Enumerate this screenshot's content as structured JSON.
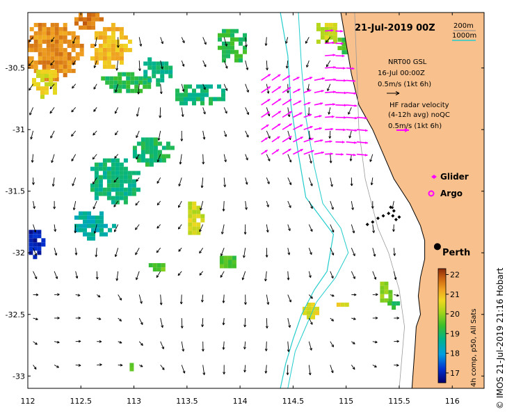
{
  "title": "21-Jul-2019 00Z",
  "depth_legend": {
    "d1": "200m",
    "d2": "1000m",
    "color_200": "#888888",
    "color_1000": "#22cccc"
  },
  "gsl": {
    "line1": "NRT00 GSL",
    "line2": "16-Jul 00:00Z",
    "line3": "0.5m/s (1kt 6h)"
  },
  "radar": {
    "line1": "HF radar velocity",
    "line2": "(4-12h avg) noQC",
    "line3": "0.5m/s (1kt 6h)",
    "color": "#ff00ff"
  },
  "glider_label": "Glider",
  "argo_label": "Argo",
  "city_label": "Perth",
  "colorbar": {
    "ticks": [
      "22",
      "21",
      "20",
      "19",
      "18",
      "17"
    ],
    "label": "4h comp, p50, All Sats"
  },
  "credit": "© IMOS 21-Jul-2019 21:16 Hobart",
  "colors": {
    "land": "#f8c08c",
    "ocean": "#ffffff",
    "isobath_1000": "#22cccc"
  },
  "chart_data": {
    "type": "map",
    "x_ticks": [
      "112",
      "112.5",
      "113",
      "113.5",
      "114",
      "114.5",
      "115",
      "115.5",
      "116"
    ],
    "y_ticks": [
      "-30.5",
      "-31",
      "-31.5",
      "-32",
      "-32.5",
      "-33"
    ],
    "xlim": [
      112.0,
      116.3
    ],
    "ylim": [
      -33.1,
      -30.05
    ],
    "sst_range": [
      16.5,
      22.3
    ],
    "city": {
      "name": "Perth",
      "lon": 115.86,
      "lat": -31.95
    },
    "sst_patches": [
      {
        "lon": 112.2,
        "lat": -30.35,
        "rx": 0.3,
        "ry": 0.25,
        "t": 21.4
      },
      {
        "lon": 112.75,
        "lat": -30.3,
        "rx": 0.2,
        "ry": 0.2,
        "t": 21.0
      },
      {
        "lon": 112.15,
        "lat": -30.6,
        "rx": 0.15,
        "ry": 0.12,
        "t": 20.6
      },
      {
        "lon": 112.55,
        "lat": -30.1,
        "rx": 0.15,
        "ry": 0.08,
        "t": 21.6
      },
      {
        "lon": 112.9,
        "lat": -30.6,
        "rx": 0.25,
        "ry": 0.1,
        "t": 19.1
      },
      {
        "lon": 113.2,
        "lat": -30.5,
        "rx": 0.15,
        "ry": 0.12,
        "t": 18.8
      },
      {
        "lon": 113.6,
        "lat": -30.7,
        "rx": 0.25,
        "ry": 0.1,
        "t": 18.9
      },
      {
        "lon": 113.15,
        "lat": -31.15,
        "rx": 0.2,
        "ry": 0.12,
        "t": 19.0
      },
      {
        "lon": 112.8,
        "lat": -31.4,
        "rx": 0.25,
        "ry": 0.2,
        "t": 18.8
      },
      {
        "lon": 112.6,
        "lat": -31.75,
        "rx": 0.2,
        "ry": 0.12,
        "t": 18.5
      },
      {
        "lon": 113.9,
        "lat": -30.3,
        "rx": 0.15,
        "ry": 0.15,
        "t": 19.2
      },
      {
        "lon": 114.8,
        "lat": -30.2,
        "rx": 0.12,
        "ry": 0.1,
        "t": 20.3
      },
      {
        "lon": 114.95,
        "lat": -30.3,
        "rx": 0.07,
        "ry": 0.08,
        "t": 19.4
      },
      {
        "lon": 112.05,
        "lat": -31.9,
        "rx": 0.08,
        "ry": 0.12,
        "t": 17.0
      },
      {
        "lon": 113.55,
        "lat": -31.7,
        "rx": 0.08,
        "ry": 0.15,
        "t": 20.4
      },
      {
        "lon": 113.85,
        "lat": -32.05,
        "rx": 0.12,
        "ry": 0.06,
        "t": 19.5
      },
      {
        "lon": 113.2,
        "lat": -32.1,
        "rx": 0.1,
        "ry": 0.05,
        "t": 19.6
      },
      {
        "lon": 114.65,
        "lat": -32.45,
        "rx": 0.1,
        "ry": 0.08,
        "t": 20.6
      },
      {
        "lon": 114.95,
        "lat": -32.4,
        "rx": 0.08,
        "ry": 0.03,
        "t": 20.7
      },
      {
        "lon": 115.35,
        "lat": -32.3,
        "rx": 0.07,
        "ry": 0.1,
        "t": 19.9
      },
      {
        "lon": 115.45,
        "lat": -32.4,
        "rx": 0.1,
        "ry": 0.04,
        "t": 19.2
      },
      {
        "lon": 112.95,
        "lat": -32.9,
        "rx": 0.03,
        "ry": 0.04,
        "t": 19.5
      }
    ],
    "isobath_1000": [
      [
        114.38,
        -30.05
      ],
      [
        114.45,
        -30.4
      ],
      [
        114.48,
        -30.8
      ],
      [
        114.55,
        -31.2
      ],
      [
        114.62,
        -31.55
      ],
      [
        114.75,
        -31.7
      ],
      [
        114.88,
        -31.85
      ],
      [
        114.85,
        -32.0
      ],
      [
        114.82,
        -32.15
      ],
      [
        114.7,
        -32.3
      ],
      [
        114.58,
        -32.5
      ],
      [
        114.5,
        -32.7
      ],
      [
        114.43,
        -32.9
      ],
      [
        114.38,
        -33.1
      ]
    ],
    "isobath_1000b": [
      [
        114.55,
        -30.05
      ],
      [
        114.58,
        -30.5
      ],
      [
        114.62,
        -30.9
      ],
      [
        114.7,
        -31.3
      ],
      [
        114.78,
        -31.6
      ],
      [
        114.95,
        -31.8
      ],
      [
        115.02,
        -32.0
      ],
      [
        114.9,
        -32.2
      ],
      [
        114.72,
        -32.4
      ],
      [
        114.62,
        -32.6
      ],
      [
        114.52,
        -32.8
      ],
      [
        114.45,
        -33.1
      ]
    ],
    "isobath_200": [
      [
        115.08,
        -30.05
      ],
      [
        115.1,
        -30.5
      ],
      [
        115.12,
        -31.0
      ],
      [
        115.18,
        -31.4
      ],
      [
        115.3,
        -31.8
      ],
      [
        115.4,
        -32.0
      ],
      [
        115.5,
        -32.3
      ],
      [
        115.55,
        -32.6
      ],
      [
        115.5,
        -33.1
      ]
    ],
    "coastline": [
      [
        114.95,
        -30.05
      ],
      [
        115.0,
        -30.3
      ],
      [
        115.05,
        -30.55
      ],
      [
        115.12,
        -30.8
      ],
      [
        115.25,
        -31.0
      ],
      [
        115.35,
        -31.2
      ],
      [
        115.45,
        -31.4
      ],
      [
        115.6,
        -31.6
      ],
      [
        115.7,
        -31.78
      ],
      [
        115.74,
        -31.9
      ],
      [
        115.74,
        -32.05
      ],
      [
        115.7,
        -32.2
      ],
      [
        115.68,
        -32.35
      ],
      [
        115.7,
        -32.5
      ],
      [
        115.66,
        -32.6
      ],
      [
        115.65,
        -32.75
      ],
      [
        115.62,
        -33.1
      ]
    ],
    "glider_track": [
      [
        115.2,
        -31.77
      ],
      [
        115.25,
        -31.75
      ],
      [
        115.3,
        -31.72
      ],
      [
        115.35,
        -31.7
      ],
      [
        115.4,
        -31.68
      ],
      [
        115.44,
        -31.7
      ],
      [
        115.47,
        -31.73
      ],
      [
        115.5,
        -31.71
      ],
      [
        115.45,
        -31.66
      ],
      [
        115.42,
        -31.63
      ]
    ],
    "argo": [],
    "radar_field": {
      "lon_range": [
        114.2,
        115.1
      ],
      "lat_range": [
        -31.3,
        -30.2
      ],
      "u": 0.35,
      "v": 0.12
    },
    "current_field": {
      "lon_range": [
        112.0,
        115.6
      ],
      "lat_range": [
        -33.05,
        -30.25
      ],
      "spacing": 0.2
    }
  }
}
